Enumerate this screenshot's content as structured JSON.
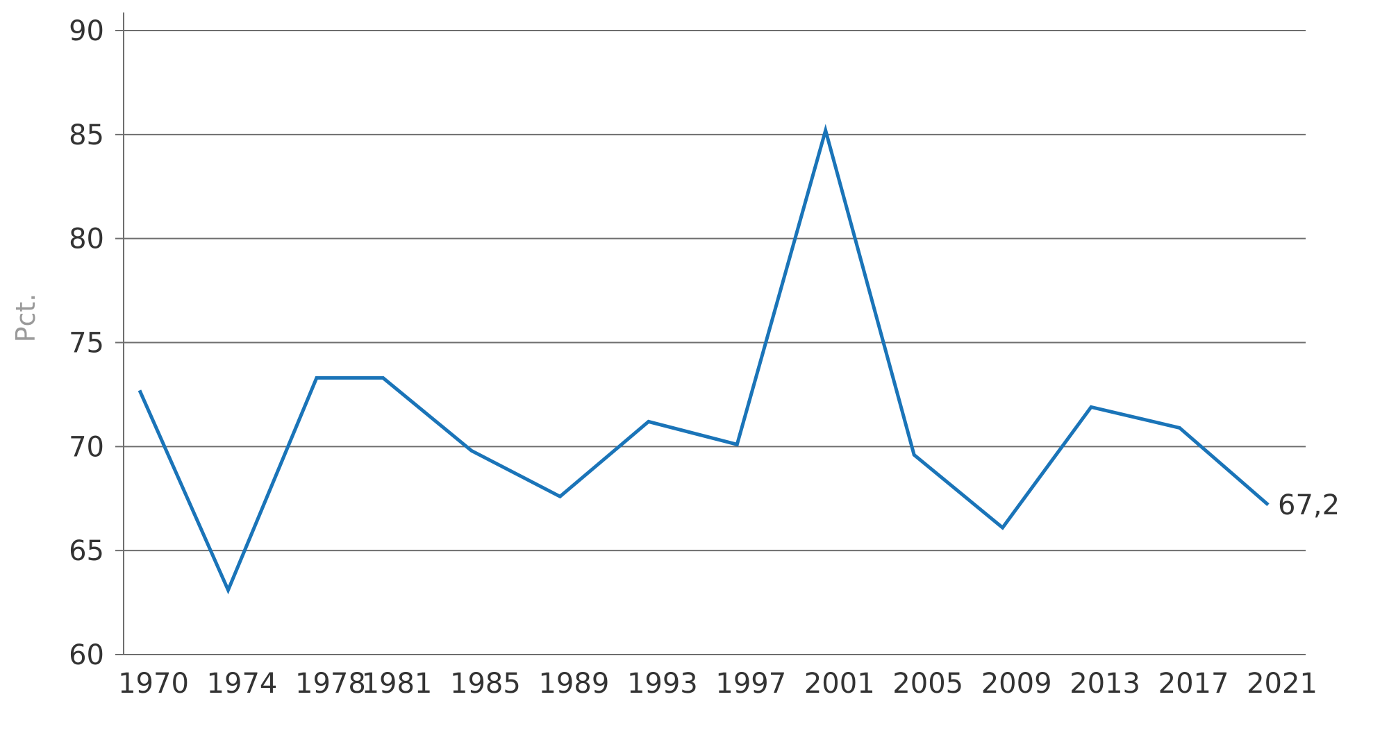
{
  "chart_data": {
    "type": "line",
    "title": "",
    "xlabel": "",
    "ylabel": "Pct.",
    "x": [
      "1970",
      "1974",
      "1978",
      "1981",
      "1985",
      "1989",
      "1993",
      "1997",
      "2001",
      "2005",
      "2009",
      "2013",
      "2017",
      "2021"
    ],
    "series": [
      {
        "values": [
          72.7,
          63.1,
          73.3,
          73.3,
          69.8,
          67.6,
          71.2,
          70.1,
          85.2,
          69.6,
          66.1,
          71.9,
          70.9,
          67.2
        ],
        "color": "#1a74b8"
      }
    ],
    "ylim": [
      60,
      90
    ],
    "yticks": [
      60,
      65,
      70,
      75,
      80,
      85,
      90
    ],
    "grid": true,
    "legend": "none",
    "annotations": [
      {
        "label": "67,2",
        "x": "2021",
        "y": 67.2
      }
    ]
  }
}
